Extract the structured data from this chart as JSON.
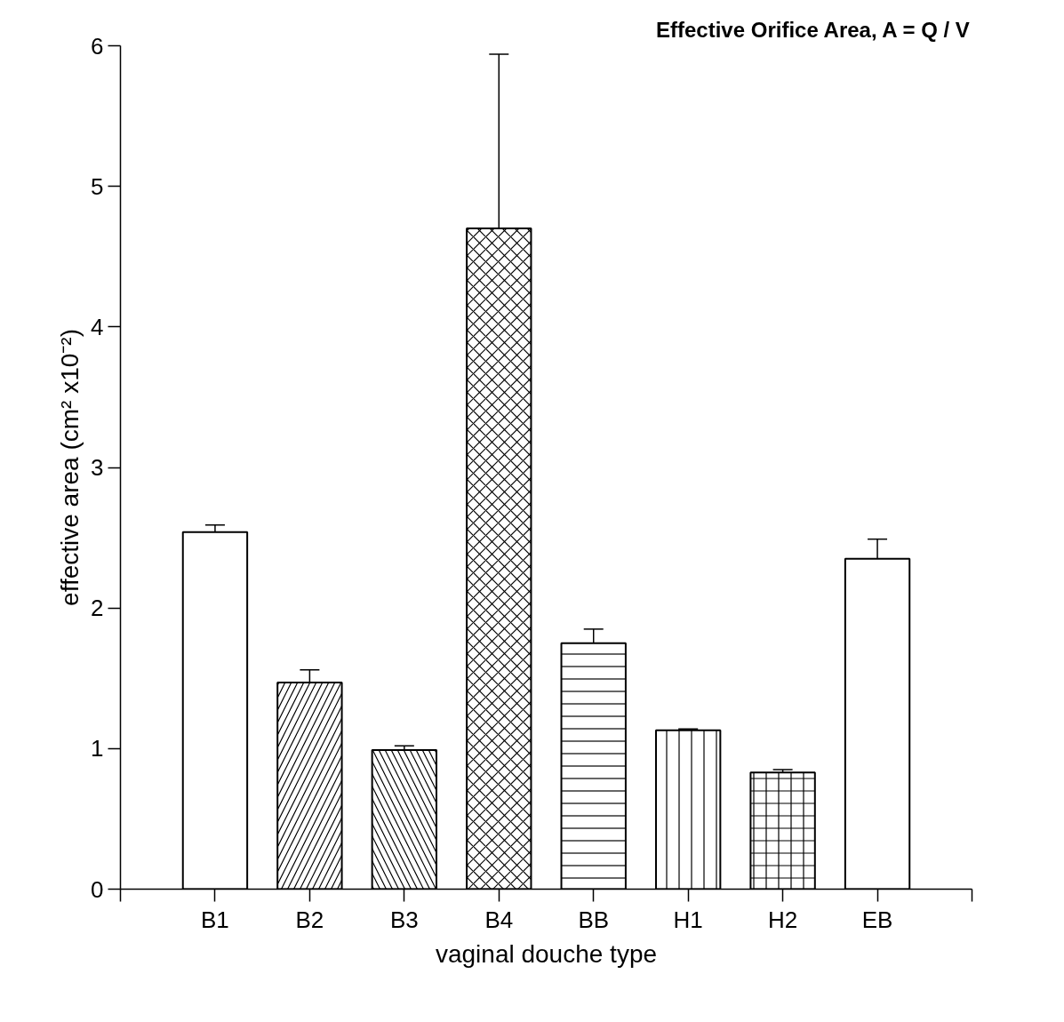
{
  "chart_data": {
    "type": "bar",
    "title": "Effective Orifice Area, A = Q / V",
    "xlabel": "vaginal douche type",
    "ylabel": "effective area (cm² x10⁻²)",
    "categories": [
      "B1",
      "B2",
      "B3",
      "B4",
      "BB",
      "H1",
      "H2",
      "EB"
    ],
    "values": [
      2.54,
      1.47,
      0.99,
      4.7,
      1.75,
      1.13,
      0.83,
      2.35
    ],
    "errors": [
      [
        2.54,
        2.59
      ],
      [
        1.47,
        1.56
      ],
      [
        0.99,
        1.02
      ],
      [
        4.7,
        5.94
      ],
      [
        1.75,
        1.85
      ],
      [
        1.13,
        1.14
      ],
      [
        0.83,
        0.85
      ],
      [
        2.35,
        2.49
      ]
    ],
    "color": "#ffffff",
    "ylim": [
      0,
      6
    ],
    "yticks": [
      0,
      1,
      2,
      3,
      4,
      5,
      6
    ],
    "grid": false
  }
}
